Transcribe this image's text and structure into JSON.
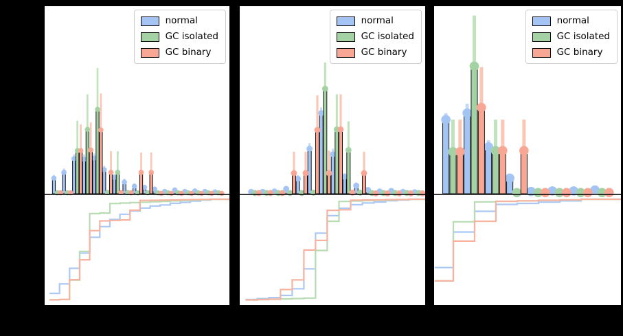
{
  "figure": {
    "background_color": "#000000",
    "panel_background": "#ffffff",
    "axis_color": "#000000"
  },
  "legend": {
    "items": [
      {
        "label": "normal",
        "color": "#a4c4f4"
      },
      {
        "label": "GC isolated",
        "color": "#a5d2a5"
      },
      {
        "label": "GC binary",
        "color": "#f9a795"
      }
    ]
  },
  "chart_data": [
    {
      "type": "bar",
      "subtype": "grouped-histogram-with-errorbars-and-cdf-steps",
      "panel": "left",
      "ylim_hist": [
        0,
        1.05
      ],
      "ylim_cdf": [
        0,
        1.05
      ],
      "grid": false,
      "legend_position": "upper right",
      "bin_width": 0.0545,
      "cdf_x_offset": -0.015,
      "bin_starts": [
        0.041,
        0.0955,
        0.15,
        0.2045,
        0.259,
        0.3135,
        0.368,
        0.4225,
        0.477,
        0.5315,
        0.586,
        0.6405,
        0.695,
        0.7495,
        0.804,
        0.8585,
        0.913
      ],
      "series": [
        {
          "name": "normal",
          "color": "#a4c4f4",
          "err_color": "#c6daf8",
          "cdf_color": "#aac8f3",
          "values": [
            0.083,
            0.114,
            0.187,
            0.184,
            0.19,
            0.128,
            0.087,
            0.062,
            0.04,
            0.034,
            0.025,
            0.012,
            0.02,
            0.012,
            0.015,
            0.012,
            0.01
          ],
          "err_top": [
            0.1,
            0.135,
            0.21,
            0.21,
            0.215,
            0.15,
            0.105,
            0.08,
            0.055,
            0.048,
            0.038,
            0.02,
            0.03,
            0.02,
            0.024,
            0.02,
            0.016
          ]
        },
        {
          "name": "GC isolated",
          "color": "#a5d2a5",
          "err_color": "#c0e3bb",
          "cdf_color": "#b8dcb2",
          "values": [
            0.005,
            0.005,
            0.23,
            0.343,
            0.45,
            0.006,
            0.114,
            0.006,
            0.005,
            0.005,
            0.005,
            0.005,
            0.005,
            0.005,
            0.005,
            0.005,
            0.005
          ],
          "err_top": [
            0,
            0,
            0.39,
            0.53,
            0.67,
            0,
            0.226,
            0,
            0,
            0,
            0,
            0,
            0,
            0,
            0,
            0,
            0
          ]
        },
        {
          "name": "GC binary",
          "color": "#f9a795",
          "err_color": "#fbc7b4",
          "cdf_color": "#f7b3a0",
          "values": [
            0.005,
            0.005,
            0.23,
            0.233,
            0.34,
            0.114,
            0.006,
            0.005,
            0.114,
            0.114,
            0.002,
            0.002,
            0.002,
            0.002,
            0.002,
            0.002,
            0.002
          ],
          "err_top": [
            0,
            0,
            0.37,
            0.38,
            0.535,
            0.227,
            0,
            0,
            0.22,
            0.22,
            0,
            0,
            0,
            0,
            0,
            0,
            0
          ]
        }
      ]
    },
    {
      "type": "bar",
      "subtype": "grouped-histogram-with-errorbars-and-cdf-steps",
      "panel": "middle",
      "ylim_hist": [
        0,
        1.05
      ],
      "ylim_cdf": [
        0,
        1.05
      ],
      "grid": false,
      "legend_position": "upper right",
      "bin_width": 0.063,
      "cdf_x_offset": -0.02,
      "bin_starts": [
        0.051,
        0.114,
        0.177,
        0.24,
        0.303,
        0.366,
        0.429,
        0.492,
        0.555,
        0.618,
        0.681,
        0.744,
        0.807,
        0.87,
        0.933
      ],
      "series": [
        {
          "name": "normal",
          "color": "#a4c4f4",
          "err_color": "#c6daf8",
          "cdf_color": "#aac8f3",
          "values": [
            0.01,
            0.01,
            0.012,
            0.026,
            0.08,
            0.24,
            0.43,
            0.21,
            0.09,
            0.043,
            0.02,
            0.012,
            0.015,
            0.01,
            0.008
          ],
          "err_top": [
            0.016,
            0.016,
            0.019,
            0.04,
            0.1,
            0.27,
            0.46,
            0.24,
            0.11,
            0.06,
            0.03,
            0.02,
            0.023,
            0.016,
            0.013
          ]
        },
        {
          "name": "GC isolated",
          "color": "#a5d2a5",
          "err_color": "#c0e3bb",
          "cdf_color": "#b8dcb2",
          "values": [
            0.004,
            0.004,
            0.004,
            0.004,
            0.004,
            0.006,
            0.56,
            0.343,
            0.233,
            0.006,
            0.004,
            0.004,
            0.004,
            0.004,
            0.004
          ],
          "err_top": [
            0,
            0,
            0,
            0,
            0,
            0,
            0.7,
            0.53,
            0.386,
            0,
            0,
            0,
            0,
            0,
            0
          ]
        },
        {
          "name": "GC binary",
          "color": "#f9a795",
          "err_color": "#fbc7b4",
          "cdf_color": "#f7b3a0",
          "values": [
            0.004,
            0.004,
            0.004,
            0.11,
            0.11,
            0.34,
            0.11,
            0.343,
            0.006,
            0.11,
            0.002,
            0.002,
            0.002,
            0.002,
            0.002
          ],
          "err_top": [
            0,
            0,
            0,
            0.224,
            0.224,
            0.525,
            0.23,
            0.53,
            0,
            0.224,
            0,
            0,
            0,
            0,
            0
          ]
        }
      ]
    },
    {
      "type": "bar",
      "subtype": "grouped-histogram-with-errorbars-and-cdf-steps",
      "panel": "right",
      "ylim_hist": [
        0,
        1.05
      ],
      "ylim_cdf": [
        0,
        1.05
      ],
      "grid": false,
      "legend_position": "upper right",
      "bin_width": 0.114,
      "cdf_x_offset": -0.055,
      "bin_starts": [
        0.044,
        0.158,
        0.272,
        0.386,
        0.5,
        0.614,
        0.728,
        0.842
      ],
      "series": [
        {
          "name": "normal",
          "color": "#a4c4f4",
          "err_color": "#c6daf8",
          "cdf_color": "#aac8f3",
          "values": [
            0.395,
            0.43,
            0.25,
            0.083,
            0.012,
            0.015,
            0.015,
            0.02
          ],
          "err_top": [
            0.43,
            0.48,
            0.285,
            0.1,
            0.02,
            0.024,
            0.024,
            0.032
          ]
        },
        {
          "name": "GC isolated",
          "color": "#a5d2a5",
          "err_color": "#c0e3bb",
          "cdf_color": "#b8dcb2",
          "values": [
            0.224,
            0.68,
            0.23,
            0.006,
            0.006,
            0.006,
            0.006,
            0.006
          ],
          "err_top": [
            0.395,
            0.95,
            0.395,
            0,
            0,
            0,
            0,
            0
          ]
        },
        {
          "name": "GC binary",
          "color": "#f9a795",
          "err_color": "#fbc7b4",
          "cdf_color": "#f7b3a0",
          "values": [
            0.224,
            0.46,
            0.23,
            0.23,
            0.006,
            0.006,
            0.006,
            0.006
          ],
          "err_top": [
            0.395,
            0.675,
            0.395,
            0.395,
            0,
            0,
            0,
            0
          ]
        }
      ]
    }
  ]
}
